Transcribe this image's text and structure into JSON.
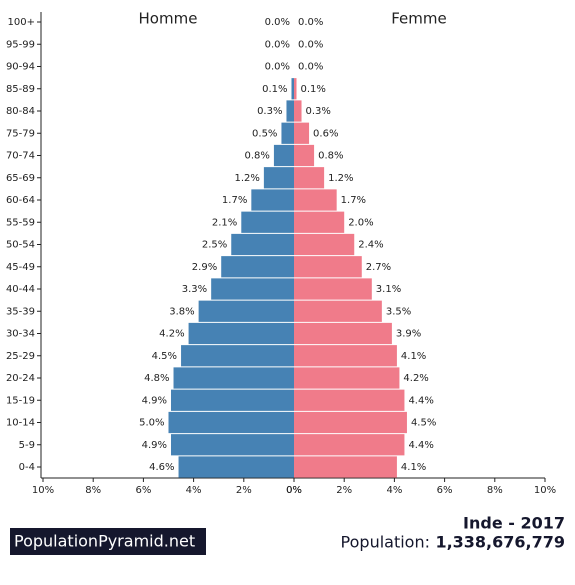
{
  "chart_data": {
    "type": "pyramid",
    "categories": [
      "100+",
      "95-99",
      "90-94",
      "85-89",
      "80-84",
      "75-79",
      "70-74",
      "65-69",
      "60-64",
      "55-59",
      "50-54",
      "45-49",
      "40-44",
      "35-39",
      "30-34",
      "25-29",
      "20-24",
      "15-19",
      "10-14",
      "5-9",
      "0-4"
    ],
    "series": [
      {
        "name": "Homme",
        "color": "#4682b4",
        "side": "left",
        "values": [
          0.0,
          0.0,
          0.0,
          0.1,
          0.3,
          0.5,
          0.8,
          1.2,
          1.7,
          2.1,
          2.5,
          2.9,
          3.3,
          3.8,
          4.2,
          4.5,
          4.8,
          4.9,
          5.0,
          4.9,
          4.6
        ],
        "value_labels": [
          "0.0%",
          "0.0%",
          "0.0%",
          "0.1%",
          "0.3%",
          "0.5%",
          "0.8%",
          "1.2%",
          "1.7%",
          "2.1%",
          "2.5%",
          "2.9%",
          "3.3%",
          "3.8%",
          "4.2%",
          "4.5%",
          "4.8%",
          "4.9%",
          "5.0%",
          "4.9%",
          "4.6%"
        ]
      },
      {
        "name": "Femme",
        "color": "#f07b8a",
        "side": "right",
        "values": [
          0.0,
          0.0,
          0.0,
          0.1,
          0.3,
          0.6,
          0.8,
          1.2,
          1.7,
          2.0,
          2.4,
          2.7,
          3.1,
          3.5,
          3.9,
          4.1,
          4.2,
          4.4,
          4.5,
          4.4,
          4.1
        ],
        "value_labels": [
          "0.0%",
          "0.0%",
          "0.0%",
          "0.1%",
          "0.3%",
          "0.6%",
          "0.8%",
          "1.2%",
          "1.7%",
          "2.0%",
          "2.4%",
          "2.7%",
          "3.1%",
          "3.5%",
          "3.9%",
          "4.1%",
          "4.2%",
          "4.4%",
          "4.5%",
          "4.4%",
          "4.1%"
        ]
      }
    ],
    "xlim": [
      0,
      10
    ],
    "xticks": [
      {
        "value": 0,
        "label": "0%"
      },
      {
        "value": 2,
        "label": "2%"
      },
      {
        "value": 4,
        "label": "4%"
      },
      {
        "value": 6,
        "label": "6%"
      },
      {
        "value": 8,
        "label": "8%"
      },
      {
        "value": 10,
        "label": "10%"
      }
    ]
  },
  "footer": {
    "site": "PopulationPyramid.net",
    "country_year": "Inde - 2017",
    "population_label": "Population:",
    "population": "1,338,676,779"
  }
}
